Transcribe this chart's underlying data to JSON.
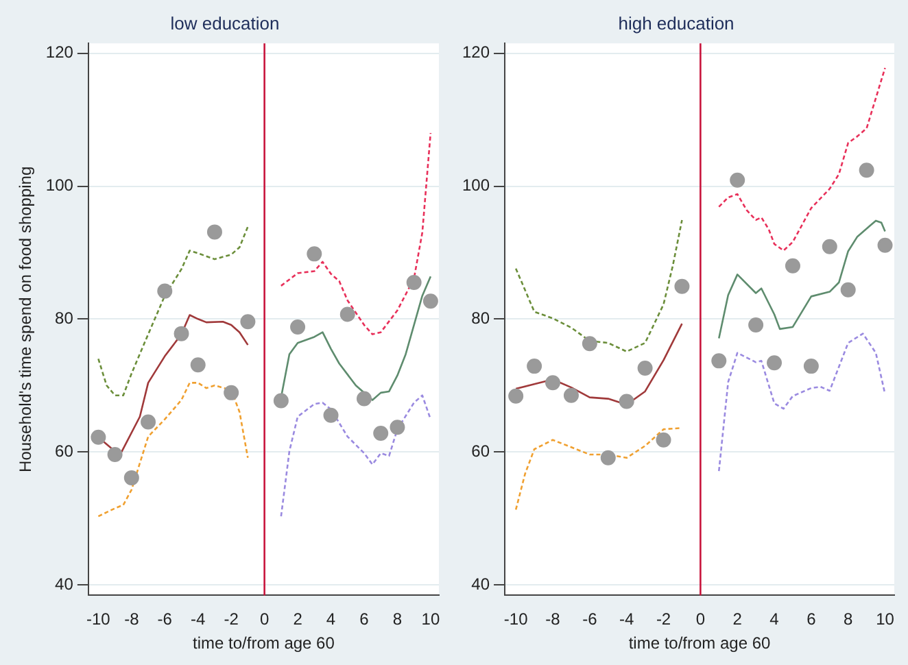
{
  "chart_data": [
    {
      "type": "scatter",
      "title": "low education",
      "xlabel": "time to/from age 60",
      "ylabel": "Household's time spend on food shopping",
      "xlim": [
        -10.6,
        10.5
      ],
      "xticks": [
        -10,
        -8,
        -6,
        -4,
        -2,
        0,
        2,
        4,
        6,
        8,
        10
      ],
      "ylim": [
        38.4,
        121.5
      ],
      "yticks": [
        40,
        60,
        80,
        100,
        120
      ],
      "grid": "y",
      "ref_lines": [
        {
          "axis": "x",
          "value": 0,
          "color": "#c8143c"
        }
      ],
      "series": [
        {
          "marker": "circle",
          "color": "#9a9a9a",
          "x": [
            -10,
            -9,
            -8,
            -7,
            -6,
            -5,
            -4,
            -3,
            -2,
            -1,
            1,
            2,
            3,
            4,
            5,
            6,
            7,
            8,
            9,
            10
          ],
          "values": [
            62.2,
            59.6,
            56.1,
            64.5,
            84.2,
            77.8,
            73.1,
            93.1,
            68.9,
            79.6,
            67.7,
            78.8,
            89.8,
            65.5,
            80.7,
            68.0,
            62.8,
            63.7,
            85.5,
            82.7
          ]
        },
        {
          "type": "line",
          "line_style": "solid",
          "color": "#a0393a",
          "x": [
            -10,
            -9,
            -8.6,
            -7.5,
            -7,
            -6,
            -5,
            -4.5,
            -4,
            -3.5,
            -2.5,
            -2,
            -1.5,
            -1
          ],
          "values": [
            62.2,
            60.1,
            60.0,
            65.3,
            70.4,
            74.4,
            77.7,
            80.6,
            80.0,
            79.5,
            79.6,
            79.1,
            78.0,
            76.1
          ]
        },
        {
          "type": "line",
          "line_style": "dashed",
          "color": "#6b8e3a",
          "x": [
            -10,
            -9.5,
            -9,
            -8.5,
            -8,
            -7,
            -6,
            -5,
            -4.5,
            -4,
            -3,
            -2,
            -1.5,
            -1
          ],
          "values": [
            74.0,
            70.0,
            68.5,
            68.5,
            71.8,
            77.7,
            83.5,
            87.5,
            90.3,
            89.9,
            89.0,
            89.7,
            90.8,
            93.9
          ]
        },
        {
          "type": "line",
          "line_style": "dashed",
          "color": "#f0a030",
          "x": [
            -10,
            -9,
            -8.5,
            -8,
            -7,
            -6,
            -5,
            -4.5,
            -4,
            -3.5,
            -3,
            -2,
            -1.5,
            -1
          ],
          "values": [
            50.3,
            51.5,
            52.0,
            54.3,
            62.3,
            64.9,
            67.8,
            70.4,
            70.4,
            69.6,
            70.0,
            69.3,
            66.0,
            59.1
          ]
        },
        {
          "type": "line",
          "line_style": "solid",
          "color": "#5e8c6e",
          "x": [
            1,
            1.5,
            2,
            3,
            3.5,
            4,
            4.5,
            5.5,
            6.5,
            7,
            7.5,
            8,
            8.5,
            9.5,
            10
          ],
          "values": [
            68.2,
            74.7,
            76.4,
            77.3,
            78.0,
            75.5,
            73.3,
            70.0,
            67.8,
            68.9,
            69.1,
            71.5,
            74.7,
            83.5,
            86.4
          ]
        },
        {
          "type": "line",
          "line_style": "dashed",
          "color": "#e8305a",
          "x": [
            1,
            2,
            3,
            3.5,
            4,
            4.5,
            5,
            6,
            6.5,
            7,
            8,
            9,
            9.5,
            10
          ],
          "values": [
            85.0,
            86.9,
            87.2,
            88.6,
            86.8,
            85.7,
            82.8,
            79.1,
            77.7,
            78.0,
            81.3,
            86.1,
            93.0,
            108.0
          ]
        },
        {
          "type": "line",
          "line_style": "dashed",
          "color": "#9a8ae0",
          "x": [
            1,
            1.5,
            2,
            3,
            3.5,
            4,
            5,
            6,
            6.5,
            7,
            7.5,
            8,
            9,
            9.5,
            10
          ],
          "values": [
            50.3,
            60.1,
            65.3,
            67.2,
            67.4,
            66.4,
            62.3,
            59.8,
            58.1,
            59.8,
            59.4,
            63.4,
            67.4,
            68.5,
            64.9
          ]
        }
      ]
    },
    {
      "type": "scatter",
      "title": "high education",
      "xlabel": "time to/from age 60",
      "xlim": [
        -10.6,
        10.5
      ],
      "xticks": [
        -10,
        -8,
        -6,
        -4,
        -2,
        0,
        2,
        4,
        6,
        8,
        10
      ],
      "ylim": [
        38.4,
        121.5
      ],
      "yticks": [
        40,
        60,
        80,
        100,
        120
      ],
      "grid": "y",
      "ref_lines": [
        {
          "axis": "x",
          "value": 0,
          "color": "#c8143c"
        }
      ],
      "series": [
        {
          "marker": "circle",
          "color": "#9a9a9a",
          "x": [
            -10,
            -9,
            -8,
            -7,
            -6,
            -5,
            -4,
            -3,
            -2,
            -1,
            1,
            2,
            3,
            4,
            5,
            6,
            7,
            8,
            9,
            10
          ],
          "values": [
            68.4,
            72.9,
            70.4,
            68.5,
            76.3,
            59.1,
            67.6,
            72.6,
            61.8,
            84.9,
            73.7,
            100.9,
            79.1,
            73.4,
            88.0,
            72.9,
            90.9,
            84.4,
            102.4,
            91.1
          ]
        },
        {
          "type": "line",
          "line_style": "solid",
          "color": "#a0393a",
          "x": [
            -10,
            -9,
            -8,
            -7,
            -6,
            -5,
            -4,
            -3,
            -2,
            -1
          ],
          "values": [
            69.5,
            70.2,
            70.9,
            69.7,
            68.2,
            68.0,
            67.1,
            69.1,
            73.8,
            79.3
          ]
        },
        {
          "type": "line",
          "line_style": "dashed",
          "color": "#6b8e3a",
          "x": [
            -10,
            -9,
            -8,
            -7,
            -6,
            -5,
            -4,
            -3,
            -2,
            -1.5,
            -1
          ],
          "values": [
            87.6,
            81.1,
            80.1,
            78.7,
            76.7,
            76.4,
            75.1,
            76.4,
            82.2,
            88.0,
            94.9
          ]
        },
        {
          "type": "line",
          "line_style": "dashed",
          "color": "#f0a030",
          "x": [
            -10,
            -9.5,
            -9,
            -8,
            -7,
            -6,
            -5,
            -4,
            -3,
            -2,
            -1
          ],
          "values": [
            51.3,
            56.7,
            60.4,
            61.8,
            60.7,
            59.6,
            59.6,
            59.1,
            60.9,
            63.4,
            63.6
          ]
        },
        {
          "type": "line",
          "line_style": "solid",
          "color": "#5e8c6e",
          "x": [
            1,
            1.5,
            2,
            3,
            3.3,
            4,
            4.3,
            5,
            6,
            7,
            7.5,
            8,
            8.5,
            9.5,
            9.8,
            10
          ],
          "values": [
            77.1,
            83.6,
            86.7,
            83.9,
            84.6,
            80.7,
            78.5,
            78.8,
            83.4,
            84.1,
            85.5,
            90.2,
            92.4,
            94.8,
            94.5,
            93.2
          ]
        },
        {
          "type": "line",
          "line_style": "dashed",
          "color": "#e8305a",
          "x": [
            1,
            1.5,
            2,
            2.5,
            3,
            3.3,
            3.7,
            4,
            4.5,
            5,
            6,
            7,
            7.5,
            8,
            8.5,
            9,
            10
          ],
          "values": [
            96.9,
            98.3,
            98.8,
            96.4,
            94.9,
            95.3,
            93.5,
            91.3,
            90.3,
            91.6,
            96.7,
            99.6,
            101.8,
            106.5,
            107.5,
            108.7,
            117.8
          ]
        },
        {
          "type": "line",
          "line_style": "dashed",
          "color": "#9a8ae0",
          "x": [
            1,
            1.5,
            2,
            3,
            3.3,
            4,
            4.5,
            5,
            6,
            6.5,
            7,
            8,
            8.8,
            9.5,
            10
          ],
          "values": [
            57.1,
            70.5,
            74.9,
            73.5,
            73.7,
            67.3,
            66.5,
            68.4,
            69.6,
            69.8,
            69.2,
            76.4,
            77.8,
            74.9,
            68.7
          ]
        }
      ]
    }
  ]
}
